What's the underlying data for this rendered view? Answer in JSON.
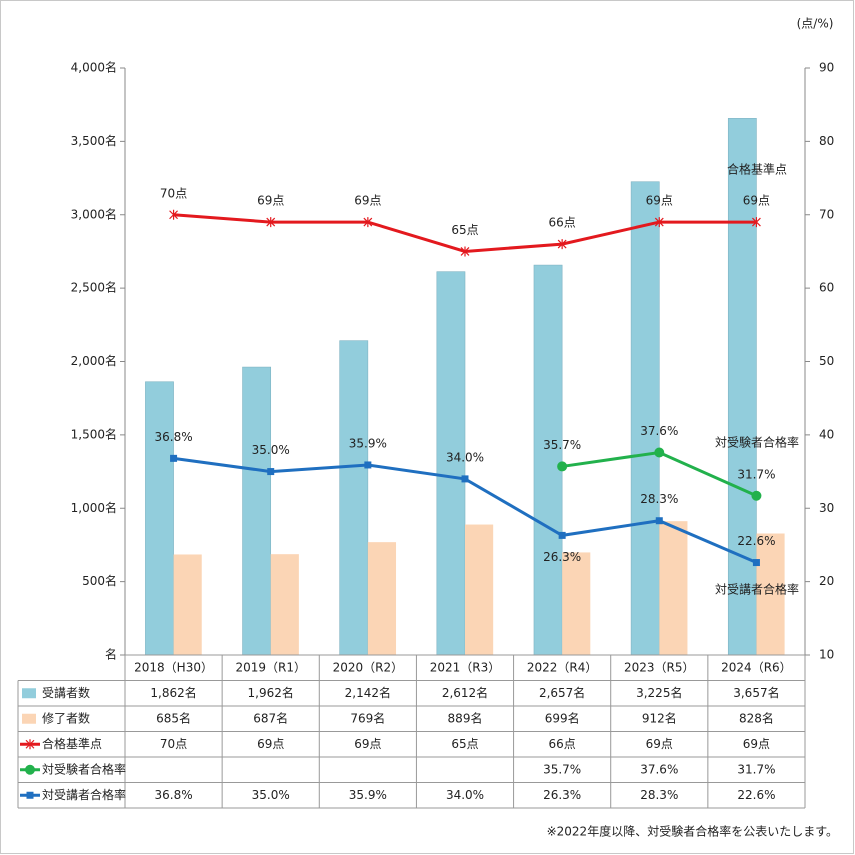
{
  "chart_data": {
    "type": "combo",
    "y2_label": "(点/%)",
    "categories": [
      "2018（H30）",
      "2019（R1）",
      "2020（R2）",
      "2021（R3）",
      "2022（R4）",
      "2023（R5）",
      "2024（R6）"
    ],
    "series": [
      {
        "name": "受講者数",
        "type": "bar",
        "color": "#92cddc",
        "values": [
          1862,
          1962,
          2142,
          2612,
          2657,
          3225,
          3657
        ],
        "value_labels": [
          "1,862名",
          "1,962名",
          "2,142名",
          "2,612名",
          "2,657名",
          "3,225名",
          "3,657名"
        ]
      },
      {
        "name": "修了者数",
        "type": "bar",
        "color": "#fbd5b5",
        "values": [
          685,
          687,
          769,
          889,
          699,
          912,
          828
        ],
        "value_labels": [
          "685名",
          "687名",
          "769名",
          "889名",
          "699名",
          "912名",
          "828名"
        ]
      },
      {
        "name": "合格基準点",
        "type": "line",
        "axis": "y2",
        "color": "#e3191e",
        "marker": "asterisk",
        "values": [
          70,
          69,
          69,
          65,
          66,
          69,
          69
        ],
        "value_labels": [
          "70点",
          "69点",
          "69点",
          "65点",
          "66点",
          "69点",
          "69点"
        ]
      },
      {
        "name": "対受験者合格率",
        "type": "line",
        "axis": "y2",
        "color": "#22b14c",
        "marker": "circle",
        "values": [
          null,
          null,
          null,
          null,
          35.7,
          37.6,
          31.7
        ],
        "value_labels": [
          null,
          null,
          null,
          null,
          "35.7%",
          "37.6%",
          "31.7%"
        ]
      },
      {
        "name": "対受講者合格率",
        "type": "line",
        "axis": "y2",
        "color": "#1f6fc0",
        "marker": "square",
        "values": [
          36.8,
          35.0,
          35.9,
          34.0,
          26.3,
          28.3,
          22.6
        ],
        "value_labels": [
          "36.8%",
          "35.0%",
          "35.9%",
          "34.0%",
          "26.3%",
          "28.3%",
          "22.6%"
        ]
      }
    ],
    "ylim": [
      0,
      4000
    ],
    "yticks": [
      {
        "value": 0,
        "label": "名"
      },
      {
        "value": 500,
        "label": "500名"
      },
      {
        "value": 1000,
        "label": "1,000名"
      },
      {
        "value": 1500,
        "label": "1,500名"
      },
      {
        "value": 2000,
        "label": "2,000名"
      },
      {
        "value": 2500,
        "label": "2,500名"
      },
      {
        "value": 3000,
        "label": "3,000名"
      },
      {
        "value": 3500,
        "label": "3,500名"
      },
      {
        "value": 4000,
        "label": "4,000名"
      }
    ],
    "y2lim": [
      10,
      90
    ],
    "y2ticks": [
      10,
      20,
      30,
      40,
      50,
      60,
      70,
      80,
      90
    ],
    "note": "※2022年度以降、対受験者合格率を公表いたします。"
  }
}
